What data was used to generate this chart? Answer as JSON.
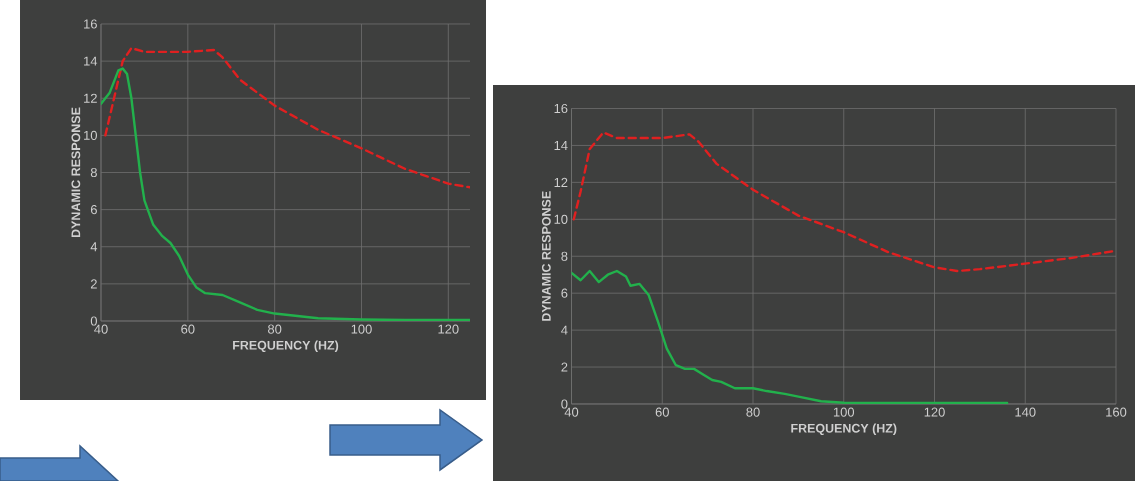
{
  "chart_data": [
    {
      "type": "line",
      "xlabel": "FREQUENCY (HZ)",
      "ylabel": "DYNAMIC RESPONSE",
      "xlim": [
        40,
        125
      ],
      "ylim": [
        0,
        16
      ],
      "xticks": [
        40,
        60,
        80,
        100,
        120
      ],
      "yticks": [
        0,
        2,
        4,
        6,
        8,
        10,
        12,
        14,
        16
      ],
      "grid": true,
      "series": [
        {
          "color": "#e02020",
          "line_style": "dashed",
          "x": [
            41,
            43,
            45,
            47,
            50,
            60,
            66,
            68,
            72,
            80,
            90,
            100,
            110,
            120,
            125
          ],
          "values": [
            10,
            12,
            14,
            14.7,
            14.5,
            14.5,
            14.6,
            14.2,
            13,
            11.6,
            10.3,
            9.3,
            8.2,
            7.4,
            7.2
          ]
        },
        {
          "color": "#22b14c",
          "line_style": "solid",
          "x": [
            40,
            42,
            44,
            45,
            46,
            47,
            48,
            49,
            50,
            52,
            54,
            56,
            58,
            60,
            62,
            64,
            68,
            72,
            76,
            80,
            90,
            100,
            110,
            120,
            125
          ],
          "values": [
            11.7,
            12.3,
            13.5,
            13.6,
            13.3,
            12,
            10,
            8,
            6.5,
            5.2,
            4.6,
            4.2,
            3.5,
            2.5,
            1.8,
            1.5,
            1.4,
            1,
            0.6,
            0.4,
            0.15,
            0.08,
            0.05,
            0.05,
            0.05
          ]
        }
      ]
    },
    {
      "type": "line",
      "xlabel": "FREQUENCY (HZ)",
      "ylabel": "DYNAMIC RESPONSE",
      "xlim": [
        40,
        160
      ],
      "ylim": [
        0,
        16
      ],
      "xticks": [
        40,
        60,
        80,
        100,
        120,
        140,
        160
      ],
      "yticks": [
        0,
        2,
        4,
        6,
        8,
        10,
        12,
        14,
        16
      ],
      "grid": true,
      "series": [
        {
          "color": "#e02020",
          "line_style": "dashed",
          "x": [
            40.5,
            42,
            44,
            47,
            50,
            60,
            66,
            68,
            72,
            80,
            90,
            100,
            110,
            120,
            125,
            130,
            140,
            150,
            160
          ],
          "values": [
            10,
            11.5,
            13.8,
            14.7,
            14.4,
            14.4,
            14.6,
            14.2,
            13,
            11.6,
            10.2,
            9.3,
            8.2,
            7.4,
            7.2,
            7.3,
            7.6,
            7.9,
            8.3
          ]
        },
        {
          "color": "#22b14c",
          "line_style": "solid",
          "x": [
            40,
            42,
            44,
            46,
            48,
            50,
            52,
            53,
            55,
            57,
            59,
            61,
            63,
            65,
            67,
            69,
            71,
            73,
            76,
            80,
            83,
            87,
            90,
            95,
            100,
            110,
            120,
            130,
            136
          ],
          "values": [
            7.1,
            6.7,
            7.2,
            6.6,
            7.0,
            7.2,
            6.9,
            6.4,
            6.5,
            5.9,
            4.5,
            3,
            2.1,
            1.9,
            1.9,
            1.6,
            1.3,
            1.2,
            0.85,
            0.85,
            0.7,
            0.55,
            0.4,
            0.15,
            0.07,
            0.05,
            0.05,
            0.06,
            0.05
          ]
        }
      ]
    }
  ]
}
